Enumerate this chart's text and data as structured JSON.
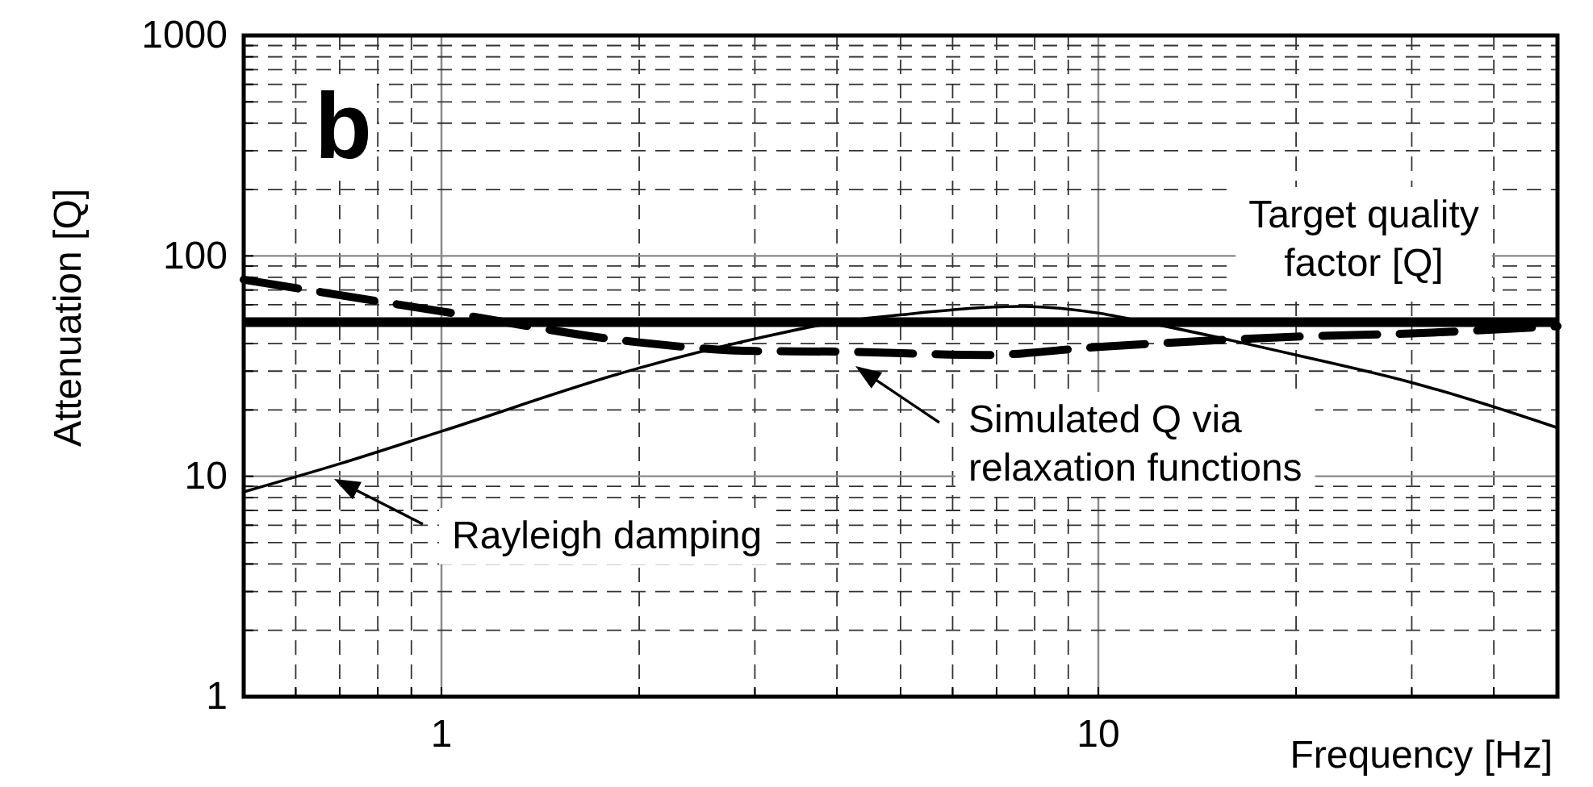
{
  "chart_data": {
    "type": "line",
    "xlabel": "Frequency [Hz]",
    "ylabel": "Attenuation [Q]",
    "annotations": [
      "b"
    ],
    "log": "xy",
    "grid": true,
    "xlim": [
      0.5,
      50
    ],
    "ylim": [
      1,
      1000
    ],
    "xticks": [
      {
        "value": 0.5,
        "label": null
      },
      {
        "value": 0.6,
        "label": null
      },
      {
        "value": 0.7,
        "label": null
      },
      {
        "value": 0.8,
        "label": null
      },
      {
        "value": 0.9,
        "label": null
      },
      1,
      {
        "value": 2,
        "label": null
      },
      {
        "value": 3,
        "label": null
      },
      {
        "value": 4,
        "label": null
      },
      {
        "value": 5,
        "label": null
      },
      {
        "value": 6,
        "label": null
      },
      {
        "value": 7,
        "label": null
      },
      {
        "value": 8,
        "label": null
      },
      {
        "value": 9,
        "label": null
      },
      10,
      {
        "value": 20,
        "label": null
      },
      {
        "value": 30,
        "label": null
      },
      {
        "value": 40,
        "label": null
      },
      {
        "value": 50,
        "label": null
      }
    ],
    "yticks": [
      1,
      {
        "value": 2,
        "label": null
      },
      {
        "value": 3,
        "label": null
      },
      {
        "value": 4,
        "label": null
      },
      {
        "value": 5,
        "label": null
      },
      {
        "value": 6,
        "label": null
      },
      {
        "value": 7,
        "label": null
      },
      {
        "value": 8,
        "label": null
      },
      {
        "value": 9,
        "label": null
      },
      10,
      {
        "value": 20,
        "label": null
      },
      {
        "value": 30,
        "label": null
      },
      {
        "value": 40,
        "label": null
      },
      {
        "value": 50,
        "label": null
      },
      {
        "value": 60,
        "label": null
      },
      {
        "value": 70,
        "label": null
      },
      {
        "value": 80,
        "label": null
      },
      {
        "value": 90,
        "label": null
      },
      100,
      {
        "value": 200,
        "label": null
      },
      {
        "value": 300,
        "label": null
      },
      {
        "value": 400,
        "label": null
      },
      {
        "value": 500,
        "label": null
      },
      {
        "value": 600,
        "label": null
      },
      {
        "value": 700,
        "label": null
      },
      {
        "value": 800,
        "label": null
      },
      {
        "value": 900,
        "label": null
      },
      1000
    ],
    "ref_lines": [
      {
        "axis": "y",
        "value": 50,
        "label": "Target quality factor [Q]",
        "color": "#000000",
        "line_style": "solid"
      }
    ],
    "series": [
      {
        "name": "Rayleigh damping",
        "color": "#000000",
        "line_style": "solid",
        "x": [
          0.5,
          0.7,
          1,
          2,
          3,
          4,
          5,
          7.6,
          10,
          11.8,
          20,
          30,
          36.5,
          50
        ],
        "values": [
          8.5,
          11.4,
          16,
          31,
          42,
          50,
          54,
          59,
          55,
          50,
          35.5,
          26.6,
          22.5,
          16.6
        ]
      },
      {
        "name": "Simulated Q via relaxation functions",
        "color": "#000000",
        "line_style": "dashed",
        "x": [
          0.5,
          1,
          2,
          3,
          4,
          6.7,
          10,
          20,
          30,
          50
        ],
        "values": [
          78,
          56,
          40.5,
          37,
          36.8,
          35.5,
          38.6,
          43,
          44.5,
          48
        ]
      }
    ]
  }
}
